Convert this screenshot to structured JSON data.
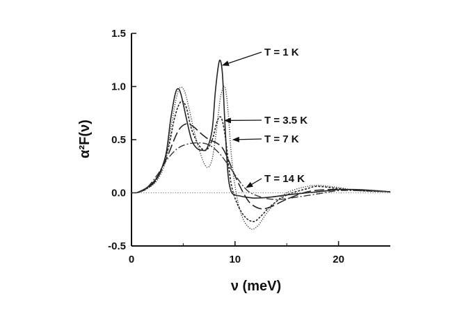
{
  "chart_data": {
    "type": "line",
    "title": "",
    "xlabel": "ν (meV)",
    "ylabel": "α²F(ν)",
    "xlim": [
      0,
      25
    ],
    "ylim": [
      -0.5,
      1.5
    ],
    "xticks": [
      "0",
      "10",
      "20"
    ],
    "xtick_values": [
      0,
      10,
      20
    ],
    "yticks": [
      "-0.5",
      "0.0",
      "0.5",
      "1.0",
      "1.5"
    ],
    "ytick_values": [
      -0.5,
      0.0,
      0.5,
      1.0,
      1.5
    ],
    "grid": false,
    "legend": "annotations with arrows, right side",
    "series": [
      {
        "name": "T = 1 K",
        "style": "solid",
        "x": [
          0.5,
          1.5,
          2.5,
          3.3,
          3.8,
          4.2,
          4.5,
          4.8,
          5.3,
          5.8,
          6.3,
          6.8,
          7.3,
          7.8,
          8.1,
          8.4,
          8.6,
          8.8,
          9.0,
          9.3,
          9.6,
          10.0,
          10.5,
          11.0,
          12.0,
          13.5,
          15.0,
          17.0,
          19.0,
          20.0,
          22.0,
          25.0
        ],
        "y": [
          0.0,
          0.05,
          0.15,
          0.35,
          0.7,
          0.92,
          0.98,
          0.92,
          0.7,
          0.5,
          0.42,
          0.4,
          0.42,
          0.6,
          0.95,
          1.2,
          1.24,
          1.1,
          0.7,
          0.2,
          0.02,
          -0.02,
          -0.03,
          -0.04,
          -0.05,
          -0.04,
          -0.02,
          0.0,
          0.02,
          0.03,
          0.03,
          0.01
        ]
      },
      {
        "name": "T = 3.5 K",
        "style": "short-dash",
        "x": [
          0.5,
          1.5,
          2.5,
          3.5,
          4.2,
          4.8,
          5.3,
          5.8,
          6.5,
          7.2,
          7.8,
          8.3,
          8.7,
          9.1,
          9.6,
          10.2,
          11.0,
          11.8,
          12.5,
          13.5,
          15.0,
          17.0,
          18.0,
          20.0,
          22.0,
          25.0
        ],
        "y": [
          0.0,
          0.04,
          0.14,
          0.4,
          0.72,
          0.86,
          0.8,
          0.6,
          0.45,
          0.4,
          0.5,
          0.68,
          0.7,
          0.5,
          0.1,
          -0.1,
          -0.23,
          -0.27,
          -0.22,
          -0.12,
          -0.02,
          0.04,
          0.06,
          0.04,
          0.02,
          0.01
        ]
      },
      {
        "name": "T = 7 K",
        "style": "long-dash",
        "x": [
          0.5,
          1.5,
          2.5,
          3.5,
          4.5,
          5.3,
          6.0,
          6.8,
          7.5,
          8.2,
          8.8,
          9.4,
          10.0,
          10.8,
          11.5,
          12.5,
          13.5,
          15.0,
          17.0,
          19.0,
          21.0,
          25.0
        ],
        "y": [
          0.0,
          0.04,
          0.14,
          0.35,
          0.58,
          0.65,
          0.62,
          0.55,
          0.5,
          0.47,
          0.42,
          0.3,
          0.16,
          0.0,
          -0.1,
          -0.15,
          -0.13,
          -0.06,
          0.01,
          0.03,
          0.03,
          0.01
        ]
      },
      {
        "name": "T = 14 K",
        "style": "dash-dot",
        "x": [
          0.5,
          1.5,
          2.5,
          3.5,
          4.5,
          5.5,
          6.5,
          7.5,
          8.5,
          9.5,
          10.5,
          11.0,
          11.5,
          12.5,
          13.5,
          14.5,
          16.0,
          18.0,
          20.0,
          22.0,
          25.0
        ],
        "y": [
          0.0,
          0.05,
          0.17,
          0.32,
          0.42,
          0.46,
          0.47,
          0.45,
          0.37,
          0.24,
          0.1,
          0.04,
          0.0,
          -0.04,
          -0.06,
          -0.06,
          -0.04,
          -0.01,
          0.02,
          0.02,
          0.01
        ]
      },
      {
        "name": "",
        "style": "dotted",
        "x": [
          0.5,
          1.5,
          2.5,
          3.3,
          3.8,
          4.3,
          4.7,
          5.1,
          5.5,
          6.0,
          6.5,
          7.0,
          7.4,
          7.8,
          8.2,
          8.6,
          9.0,
          9.3,
          9.7,
          10.2,
          10.8,
          11.4,
          11.8,
          12.3,
          13.0,
          14.0,
          15.0,
          16.5,
          18.0,
          20.0,
          22.0,
          25.0
        ],
        "y": [
          0.0,
          0.04,
          0.12,
          0.3,
          0.6,
          0.88,
          0.99,
          0.96,
          0.82,
          0.6,
          0.42,
          0.28,
          0.24,
          0.32,
          0.58,
          0.9,
          1.0,
          0.8,
          0.3,
          -0.05,
          -0.25,
          -0.33,
          -0.34,
          -0.3,
          -0.2,
          -0.08,
          0.0,
          0.05,
          0.07,
          0.05,
          0.02,
          0.01
        ]
      },
      {
        "name": "",
        "style": "baseline-dotted",
        "x": [
          0,
          25
        ],
        "y": [
          0,
          0
        ]
      }
    ],
    "annotations": [
      {
        "text": "T = 1 K",
        "points_to": [
          8.6,
          1.2
        ]
      },
      {
        "text": "T = 3.5 K",
        "points_to": [
          8.8,
          0.68
        ]
      },
      {
        "text": "T = 7 K",
        "points_to": [
          9.6,
          0.5
        ]
      },
      {
        "text": "T = 14 K",
        "points_to": [
          10.9,
          0.05
        ]
      }
    ]
  }
}
